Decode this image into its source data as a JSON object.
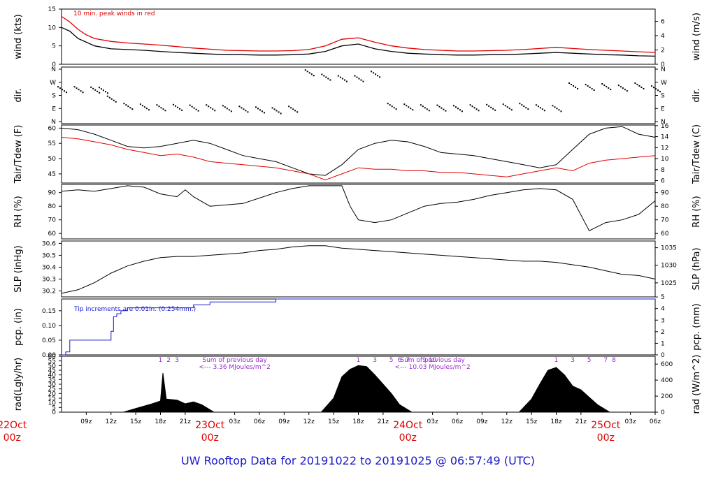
{
  "chart_data": {
    "type": "line",
    "title": "UW Rooftop Data for 20191022  to  20191025 @ 06:57:49  (UTC)",
    "x_ticks": [
      "09z",
      "12z",
      "15z",
      "18z",
      "21z",
      "03z",
      "06z",
      "09z",
      "12z",
      "15z",
      "18z",
      "21z",
      "03z",
      "06z",
      "09z",
      "12z",
      "15z",
      "18z",
      "21z",
      "03z",
      "06z"
    ],
    "day_labels": [
      {
        "day": "22Oct",
        "time": "00z"
      },
      {
        "day": "23Oct",
        "time": "00z"
      },
      {
        "day": "24Oct",
        "time": "00z"
      },
      {
        "day": "25Oct",
        "time": "00z"
      }
    ],
    "panels": {
      "wind": {
        "ylabel_left": "wind (kts)",
        "ylabel_right": "wind (m/s)",
        "ylim": [
          0,
          15
        ],
        "left_ticks": [
          "0",
          "5",
          "10",
          "15"
        ],
        "right_ticks": [
          "0",
          "2",
          "4",
          "6"
        ],
        "annotation": "10 min. peak winds in red",
        "series": [
          {
            "name": "",
            "color": "#000000",
            "x_hours": [
              6,
              7,
              8,
              9,
              10,
              12,
              14,
              16,
              18,
              20,
              22,
              24,
              26,
              28,
              30,
              32,
              34,
              36,
              38,
              40,
              42,
              44,
              46,
              48,
              50,
              52,
              54,
              56,
              58,
              60,
              62,
              64,
              66,
              68,
              70,
              72,
              74,
              76,
              78
            ],
            "values": [
              10,
              9,
              7,
              6,
              5,
              4.2,
              4,
              3.8,
              3.5,
              3.2,
              3,
              2.8,
              2.6,
              2.6,
              2.5,
              2.5,
              2.6,
              2.8,
              3.5,
              5,
              5.5,
              4.2,
              3.5,
              3,
              2.8,
              2.6,
              2.5,
              2.5,
              2.6,
              2.6,
              2.8,
              3,
              3.2,
              3,
              2.8,
              2.6,
              2.5,
              2.3,
              2.2
            ]
          },
          {
            "name": "",
            "color": "#e00000",
            "x_hours": [
              6,
              7,
              8,
              9,
              10,
              12,
              14,
              16,
              18,
              20,
              22,
              24,
              26,
              28,
              30,
              32,
              34,
              36,
              38,
              40,
              42,
              44,
              46,
              48,
              50,
              52,
              54,
              56,
              58,
              60,
              62,
              64,
              66,
              68,
              70,
              72,
              74,
              76,
              78
            ],
            "values": [
              13,
              11.5,
              9.5,
              8,
              7,
              6.2,
              5.8,
              5.5,
              5.2,
              4.8,
              4.4,
              4.1,
              3.8,
              3.7,
              3.6,
              3.6,
              3.7,
              4,
              5,
              6.8,
              7.2,
              6,
              5,
              4.4,
              4,
              3.8,
              3.6,
              3.6,
              3.7,
              3.8,
              4,
              4.3,
              4.6,
              4.3,
              4,
              3.8,
              3.6,
              3.4,
              3.2
            ]
          }
        ]
      },
      "dir": {
        "ylabel_left": "dir.",
        "ylabel_right": "dir.",
        "left_ticks": [
          "N",
          "E",
          "S",
          "W",
          "N"
        ],
        "right_ticks": [
          "N",
          "E",
          "S",
          "W",
          "N"
        ],
        "series": [
          {
            "name": "",
            "color": "#000000",
            "x_hours": [
              6,
              8,
              10,
              11,
              12,
              14,
              16,
              18,
              20,
              22,
              24,
              26,
              28,
              30,
              32,
              34,
              36,
              38,
              40,
              42,
              44,
              46,
              48,
              50,
              52,
              54,
              56,
              58,
              60,
              62,
              64,
              66,
              68,
              70,
              72,
              74,
              76,
              78
            ],
            "values": [
              215,
              215,
              212,
              210,
              150,
              100,
              95,
              90,
              92,
              88,
              90,
              85,
              80,
              75,
              70,
              80,
              330,
              300,
              290,
              290,
              320,
              100,
              95,
              90,
              88,
              85,
              90,
              92,
              95,
              100,
              90,
              85,
              240,
              230,
              235,
              225,
              240,
              220
            ]
          }
        ]
      },
      "temp": {
        "ylabel_left": "Tair/Tdew (F)",
        "ylabel_right": "Tair/Tdew (C)",
        "ylim": [
          42,
          61
        ],
        "left_ticks": [
          "45",
          "50",
          "55",
          "60"
        ],
        "right_ticks": [
          "6",
          "8",
          "10",
          "12",
          "14",
          "16"
        ],
        "series": [
          {
            "name": "",
            "color": "#000000",
            "x_hours": [
              6,
              8,
              10,
              12,
              14,
              16,
              18,
              20,
              22,
              24,
              26,
              28,
              30,
              32,
              34,
              36,
              38,
              40,
              42,
              44,
              46,
              48,
              50,
              52,
              54,
              56,
              58,
              60,
              62,
              64,
              66,
              68,
              70,
              72,
              74,
              76,
              78
            ],
            "values": [
              60,
              59.5,
              58,
              56,
              54,
              53.5,
              54,
              55,
              56,
              55,
              53,
              51,
              50,
              49,
              47,
              45,
              44.5,
              48,
              53,
              55,
              56,
              55.5,
              54,
              52,
              51.5,
              51,
              50,
              49,
              48,
              47,
              48,
              53,
              58,
              60,
              60.5,
              58,
              57
            ]
          },
          {
            "name": "",
            "color": "#e00000",
            "x_hours": [
              6,
              8,
              10,
              12,
              14,
              16,
              18,
              20,
              22,
              24,
              26,
              28,
              30,
              32,
              34,
              36,
              38,
              40,
              42,
              44,
              46,
              48,
              50,
              52,
              54,
              56,
              58,
              60,
              62,
              64,
              66,
              68,
              70,
              72,
              74,
              76,
              78
            ],
            "values": [
              57,
              56.5,
              55.5,
              54.5,
              53,
              52,
              51,
              51.5,
              50.5,
              49,
              48.5,
              48,
              47.5,
              47,
              46,
              45,
              43,
              45,
              47,
              46.5,
              46.5,
              46,
              46,
              45.5,
              45.5,
              45,
              44.5,
              44,
              45,
              46,
              47,
              46,
              48.5,
              49.5,
              50,
              50.5,
              51
            ]
          }
        ]
      },
      "rh": {
        "ylabel_left": "RH (%)",
        "ylabel_right": "RH (%)",
        "ylim": [
          56,
          96
        ],
        "left_ticks": [
          "60",
          "70",
          "80",
          "90"
        ],
        "right_ticks": [
          "60",
          "70",
          "80",
          "90"
        ],
        "series": [
          {
            "name": "",
            "color": "#000000",
            "x_hours": [
              6,
              8,
              10,
              12,
              14,
              16,
              18,
              20,
              21,
              22,
              24,
              26,
              28,
              30,
              32,
              34,
              36,
              38,
              40,
              41,
              42,
              44,
              46,
              48,
              50,
              52,
              54,
              56,
              58,
              60,
              62,
              64,
              66,
              68,
              70,
              72,
              74,
              76,
              78
            ],
            "values": [
              91,
              92,
              91,
              93,
              95,
              94,
              89,
              87,
              92,
              87,
              80,
              81,
              82,
              86,
              90,
              93,
              95,
              95,
              95,
              80,
              70,
              68,
              70,
              75,
              80,
              82,
              83,
              85,
              88,
              90,
              92,
              93,
              92,
              85,
              62,
              68,
              70,
              74,
              84
            ]
          }
        ]
      },
      "slp": {
        "ylabel_left": "SLP (inHg)",
        "ylabel_right": "SLP (hPa)",
        "ylim": [
          30.15,
          30.62
        ],
        "left_ticks": [
          "30.2",
          "30.3",
          "30.4",
          "30.5",
          "30.6"
        ],
        "right_ticks": [
          "1025",
          "1030",
          "1035"
        ],
        "series": [
          {
            "name": "",
            "color": "#000000",
            "x_hours": [
              6,
              8,
              10,
              12,
              14,
              16,
              18,
              20,
              22,
              24,
              26,
              28,
              30,
              32,
              34,
              36,
              38,
              40,
              42,
              44,
              46,
              48,
              50,
              52,
              54,
              56,
              58,
              60,
              62,
              64,
              66,
              68,
              70,
              72,
              74,
              76,
              78
            ],
            "values": [
              30.18,
              30.21,
              30.27,
              30.35,
              30.41,
              30.45,
              30.48,
              30.49,
              30.49,
              30.5,
              30.51,
              30.52,
              30.54,
              30.55,
              30.57,
              30.58,
              30.58,
              30.56,
              30.55,
              30.54,
              30.53,
              30.52,
              30.51,
              30.5,
              30.49,
              30.48,
              30.47,
              30.46,
              30.45,
              30.45,
              30.44,
              30.42,
              30.4,
              30.37,
              30.34,
              30.33,
              30.3
            ]
          }
        ]
      },
      "pcp": {
        "ylabel_left": "pcp. (in)",
        "ylabel_right": "pcp. (mm)",
        "ylim": [
          0,
          0.19
        ],
        "left_ticks": [
          "0.00",
          "0.05",
          "0.10",
          "0.15"
        ],
        "right_ticks": [
          "0",
          "1",
          "2",
          "3",
          "4",
          "5"
        ],
        "annotation": "Tip increments are 0.01in. (0.254mm.)",
        "series": [
          {
            "name": "",
            "color": "#1a1acc",
            "x_hours": [
              6,
              6.5,
              7,
              11.5,
              12,
              12.3,
              12.7,
              13.2,
              14,
              18,
              22,
              24,
              28,
              32,
              78
            ],
            "values": [
              0,
              0.01,
              0.05,
              0.05,
              0.08,
              0.13,
              0.14,
              0.15,
              0.16,
              0.16,
              0.17,
              0.18,
              0.18,
              0.19,
              0.19
            ]
          }
        ]
      },
      "rad": {
        "ylabel_left": "rad(Lgly/hr)",
        "ylabel_right": "rad (W/m^2)",
        "ylim": [
          0,
          60
        ],
        "left_ticks": [
          "0",
          "5",
          "10",
          "15",
          "20",
          "25",
          "30",
          "35",
          "40",
          "45",
          "50",
          "55",
          "60"
        ],
        "right_ticks": [
          "0",
          "200",
          "400",
          "600"
        ],
        "annotations": [
          {
            "x_hour": 27,
            "lines": [
              "Sum of previous day",
              "<--- 3.36 MJoules/m^2"
            ]
          },
          {
            "x_hour": 51,
            "lines": [
              "Sum of previous day",
              "<--- 10.03 MJoules/m^2"
            ]
          }
        ],
        "hour_marks": [
          {
            "day": 0,
            "labels": [
              "1",
              "2",
              "3"
            ]
          },
          {
            "day": 1,
            "labels": [
              "1",
              "3",
              "5",
              "6",
              "7",
              "9",
              "10"
            ]
          },
          {
            "day": 2,
            "labels": [
              "1",
              "3",
              "5",
              "7",
              "8"
            ]
          }
        ],
        "series": [
          {
            "name": "",
            "color": "#000000",
            "x_hours": [
              13.5,
              15,
              17,
              18,
              18.3,
              18.7,
              20,
              21,
              22,
              23,
              24.5,
              37.5,
              39,
              40,
              41,
              42,
              43,
              44,
              45,
              46,
              47,
              48.5,
              61.5,
              63,
              64,
              65,
              66,
              67,
              68,
              69,
              70,
              71,
              72.5
            ],
            "values": [
              0,
              4,
              9,
              12,
              42,
              14,
              13,
              9,
              11,
              8,
              0,
              0,
              15,
              38,
              46,
              50,
              49,
              40,
              30,
              20,
              8,
              0,
              0,
              14,
              30,
              45,
              48,
              40,
              28,
              24,
              16,
              8,
              0
            ]
          }
        ]
      }
    }
  }
}
